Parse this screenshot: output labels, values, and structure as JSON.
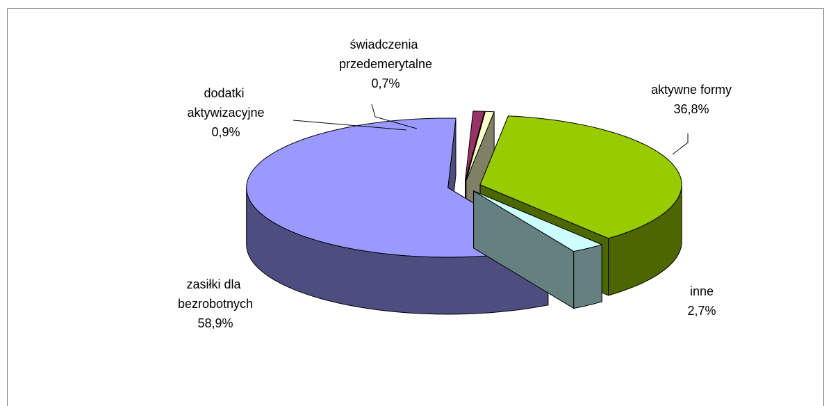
{
  "chart_data": {
    "type": "pie",
    "categories": [
      "aktywne formy",
      "inne",
      "zasiłki dla bezrobotnych",
      "dodatki aktywizacyjne",
      "świadczenia przedemerytalne"
    ],
    "values": [
      36.8,
      2.7,
      58.9,
      0.9,
      0.7
    ],
    "value_labels": [
      "36,8%",
      "2,7%",
      "58,9%",
      "0,9%",
      "0,7%"
    ],
    "colors": [
      "#99cc00",
      "#ccffff",
      "#9999ff",
      "#993366",
      "#ffffcc"
    ]
  }
}
